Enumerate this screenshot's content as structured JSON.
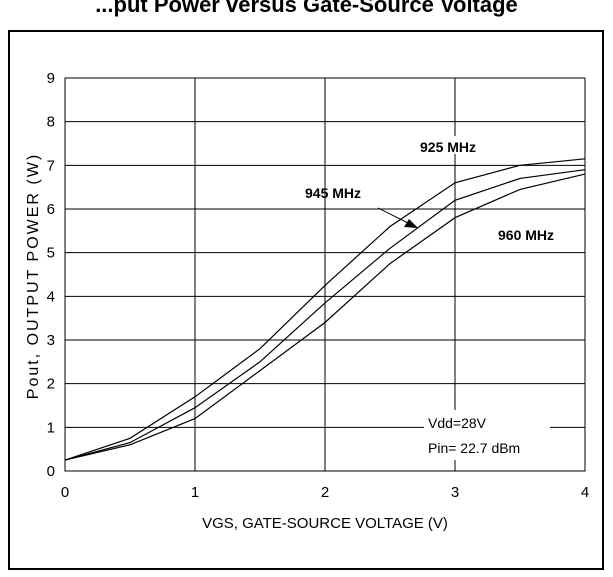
{
  "chart_data": {
    "type": "line",
    "title_fragment": "...put Power versus Gate-Source Voltage",
    "xlabel": "VGS, GATE-SOURCE VOLTAGE (V)",
    "ylabel": "Pout, OUTPUT POWER (W)",
    "xlim": [
      0,
      4
    ],
    "ylim": [
      0,
      9
    ],
    "x_ticks": [
      "0",
      "1",
      "2",
      "3",
      "4"
    ],
    "y_ticks": [
      "0",
      "1",
      "2",
      "3",
      "4",
      "5",
      "6",
      "7",
      "8",
      "9"
    ],
    "grid": true,
    "series": [
      {
        "name": "925 MHz",
        "x": [
          0,
          0.5,
          1.0,
          1.5,
          2.0,
          2.5,
          3.0,
          3.5,
          4.0
        ],
        "y": [
          0.25,
          0.75,
          1.7,
          2.8,
          4.25,
          5.6,
          6.6,
          7.0,
          7.15
        ]
      },
      {
        "name": "945 MHz",
        "x": [
          0,
          0.5,
          1.0,
          1.5,
          2.0,
          2.5,
          3.0,
          3.5,
          4.0
        ],
        "y": [
          0.25,
          0.65,
          1.45,
          2.5,
          3.85,
          5.1,
          6.2,
          6.7,
          6.9
        ]
      },
      {
        "name": "960 MHz",
        "x": [
          0,
          0.5,
          1.0,
          1.5,
          2.0,
          2.5,
          3.0,
          3.5,
          4.0
        ],
        "y": [
          0.25,
          0.6,
          1.2,
          2.3,
          3.4,
          4.75,
          5.8,
          6.45,
          6.8
        ]
      }
    ],
    "annotations": {
      "label_925": "925 MHz",
      "label_945": "945 MHz",
      "label_960": "960 MHz",
      "condition_1": "Vdd=28V",
      "condition_2": "Pin= 22.7 dBm"
    }
  }
}
